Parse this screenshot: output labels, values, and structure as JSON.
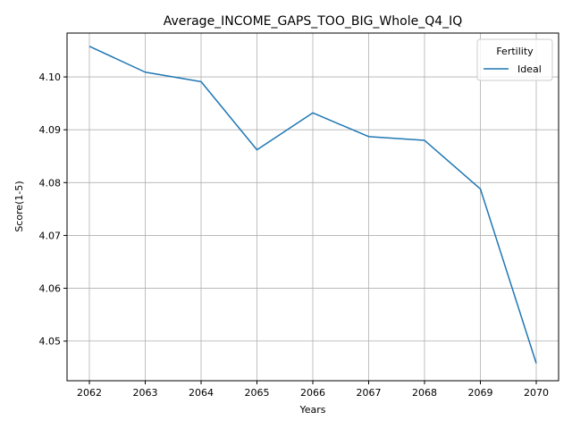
{
  "chart_data": {
    "type": "line",
    "title": "Average_INCOME_GAPS_TOO_BIG_Whole_Q4_IQ",
    "xlabel": "Years",
    "ylabel": "Score(1-5)",
    "x": [
      2062,
      2063,
      2064,
      2065,
      2066,
      2067,
      2068,
      2069,
      2070
    ],
    "xticks": [
      "2062",
      "2063",
      "2064",
      "2065",
      "2066",
      "2067",
      "2068",
      "2069",
      "2070"
    ],
    "yticks": [
      "4.05",
      "4.06",
      "4.07",
      "4.08",
      "4.09",
      "4.10"
    ],
    "ytick_values": [
      4.05,
      4.06,
      4.07,
      4.08,
      4.09,
      4.1
    ],
    "xlim": [
      2061.6,
      2070.4
    ],
    "ylim": [
      4.0425,
      4.1083
    ],
    "grid": true,
    "legend": {
      "title": "Fertility",
      "position": "top-right"
    },
    "series": [
      {
        "name": "Ideal",
        "color": "#1f77b4",
        "values": [
          4.1058,
          4.1009,
          4.0991,
          4.0862,
          4.0932,
          4.0887,
          4.088,
          4.0788,
          4.0458
        ]
      }
    ]
  }
}
